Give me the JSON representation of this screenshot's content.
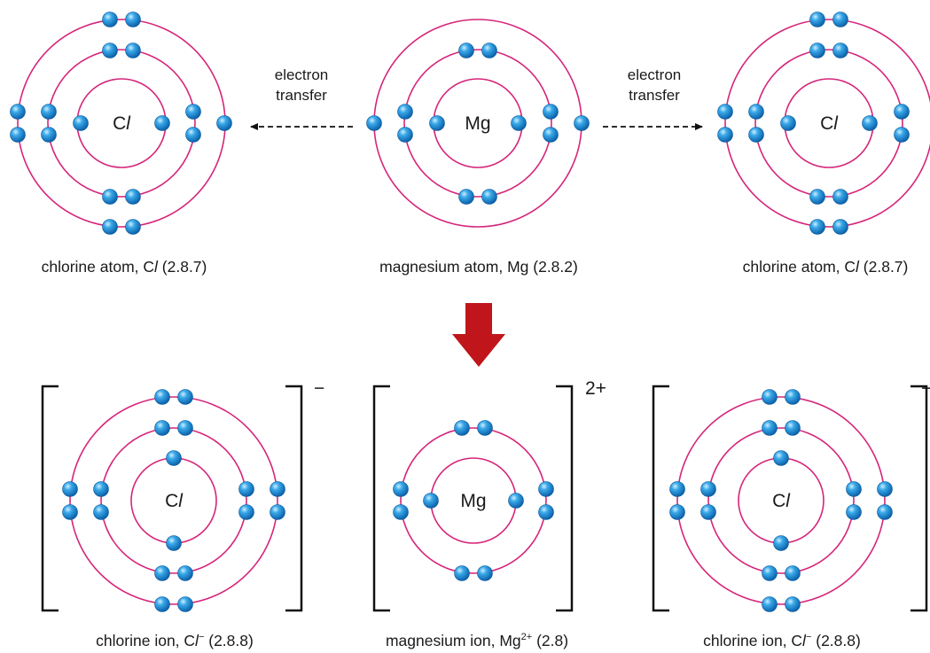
{
  "colors": {
    "shell": "#d6257a",
    "electron": "#1d8fd6",
    "arrow_big": "#c0161b",
    "bracket": "#111111",
    "text": "#1a1a1a"
  },
  "arrow_label_left": [
    "electron",
    "transfer"
  ],
  "arrow_label_right": [
    "electron",
    "transfer"
  ],
  "atoms_top": [
    {
      "symbol": "C",
      "symbol_italic": "l",
      "caption_prefix": "chlorine atom, C",
      "caption_italic": "l",
      "caption_suffix": " (2.8.7)",
      "shells": [
        2,
        8,
        7
      ]
    },
    {
      "symbol": "Mg",
      "symbol_italic": "",
      "caption_prefix": "magnesium atom, Mg (2.8.2)",
      "caption_italic": "",
      "caption_suffix": "",
      "shells": [
        2,
        8,
        2
      ]
    },
    {
      "symbol": "C",
      "symbol_italic": "l",
      "caption_prefix": "chlorine atom, C",
      "caption_italic": "l",
      "caption_suffix": " (2.8.7)",
      "shells": [
        2,
        8,
        7
      ]
    }
  ],
  "ions_bottom": [
    {
      "symbol": "C",
      "symbol_italic": "l",
      "charge": "−",
      "caption_prefix": "chlorine ion, C",
      "caption_italic": "l",
      "caption_sup": "−",
      "caption_suffix": " (2.8.8)",
      "shells": [
        2,
        8,
        8
      ]
    },
    {
      "symbol": "Mg",
      "symbol_italic": "",
      "charge": "2+",
      "caption_prefix": "magnesium ion, Mg",
      "caption_italic": "",
      "caption_sup": "2+",
      "caption_suffix": " (2.8)",
      "shells": [
        2,
        8
      ]
    },
    {
      "symbol": "C",
      "symbol_italic": "l",
      "charge": "−",
      "caption_prefix": "chlorine ion, C",
      "caption_italic": "l",
      "caption_sup": "−",
      "caption_suffix": " (2.8.8)",
      "shells": [
        2,
        8,
        8
      ]
    }
  ]
}
